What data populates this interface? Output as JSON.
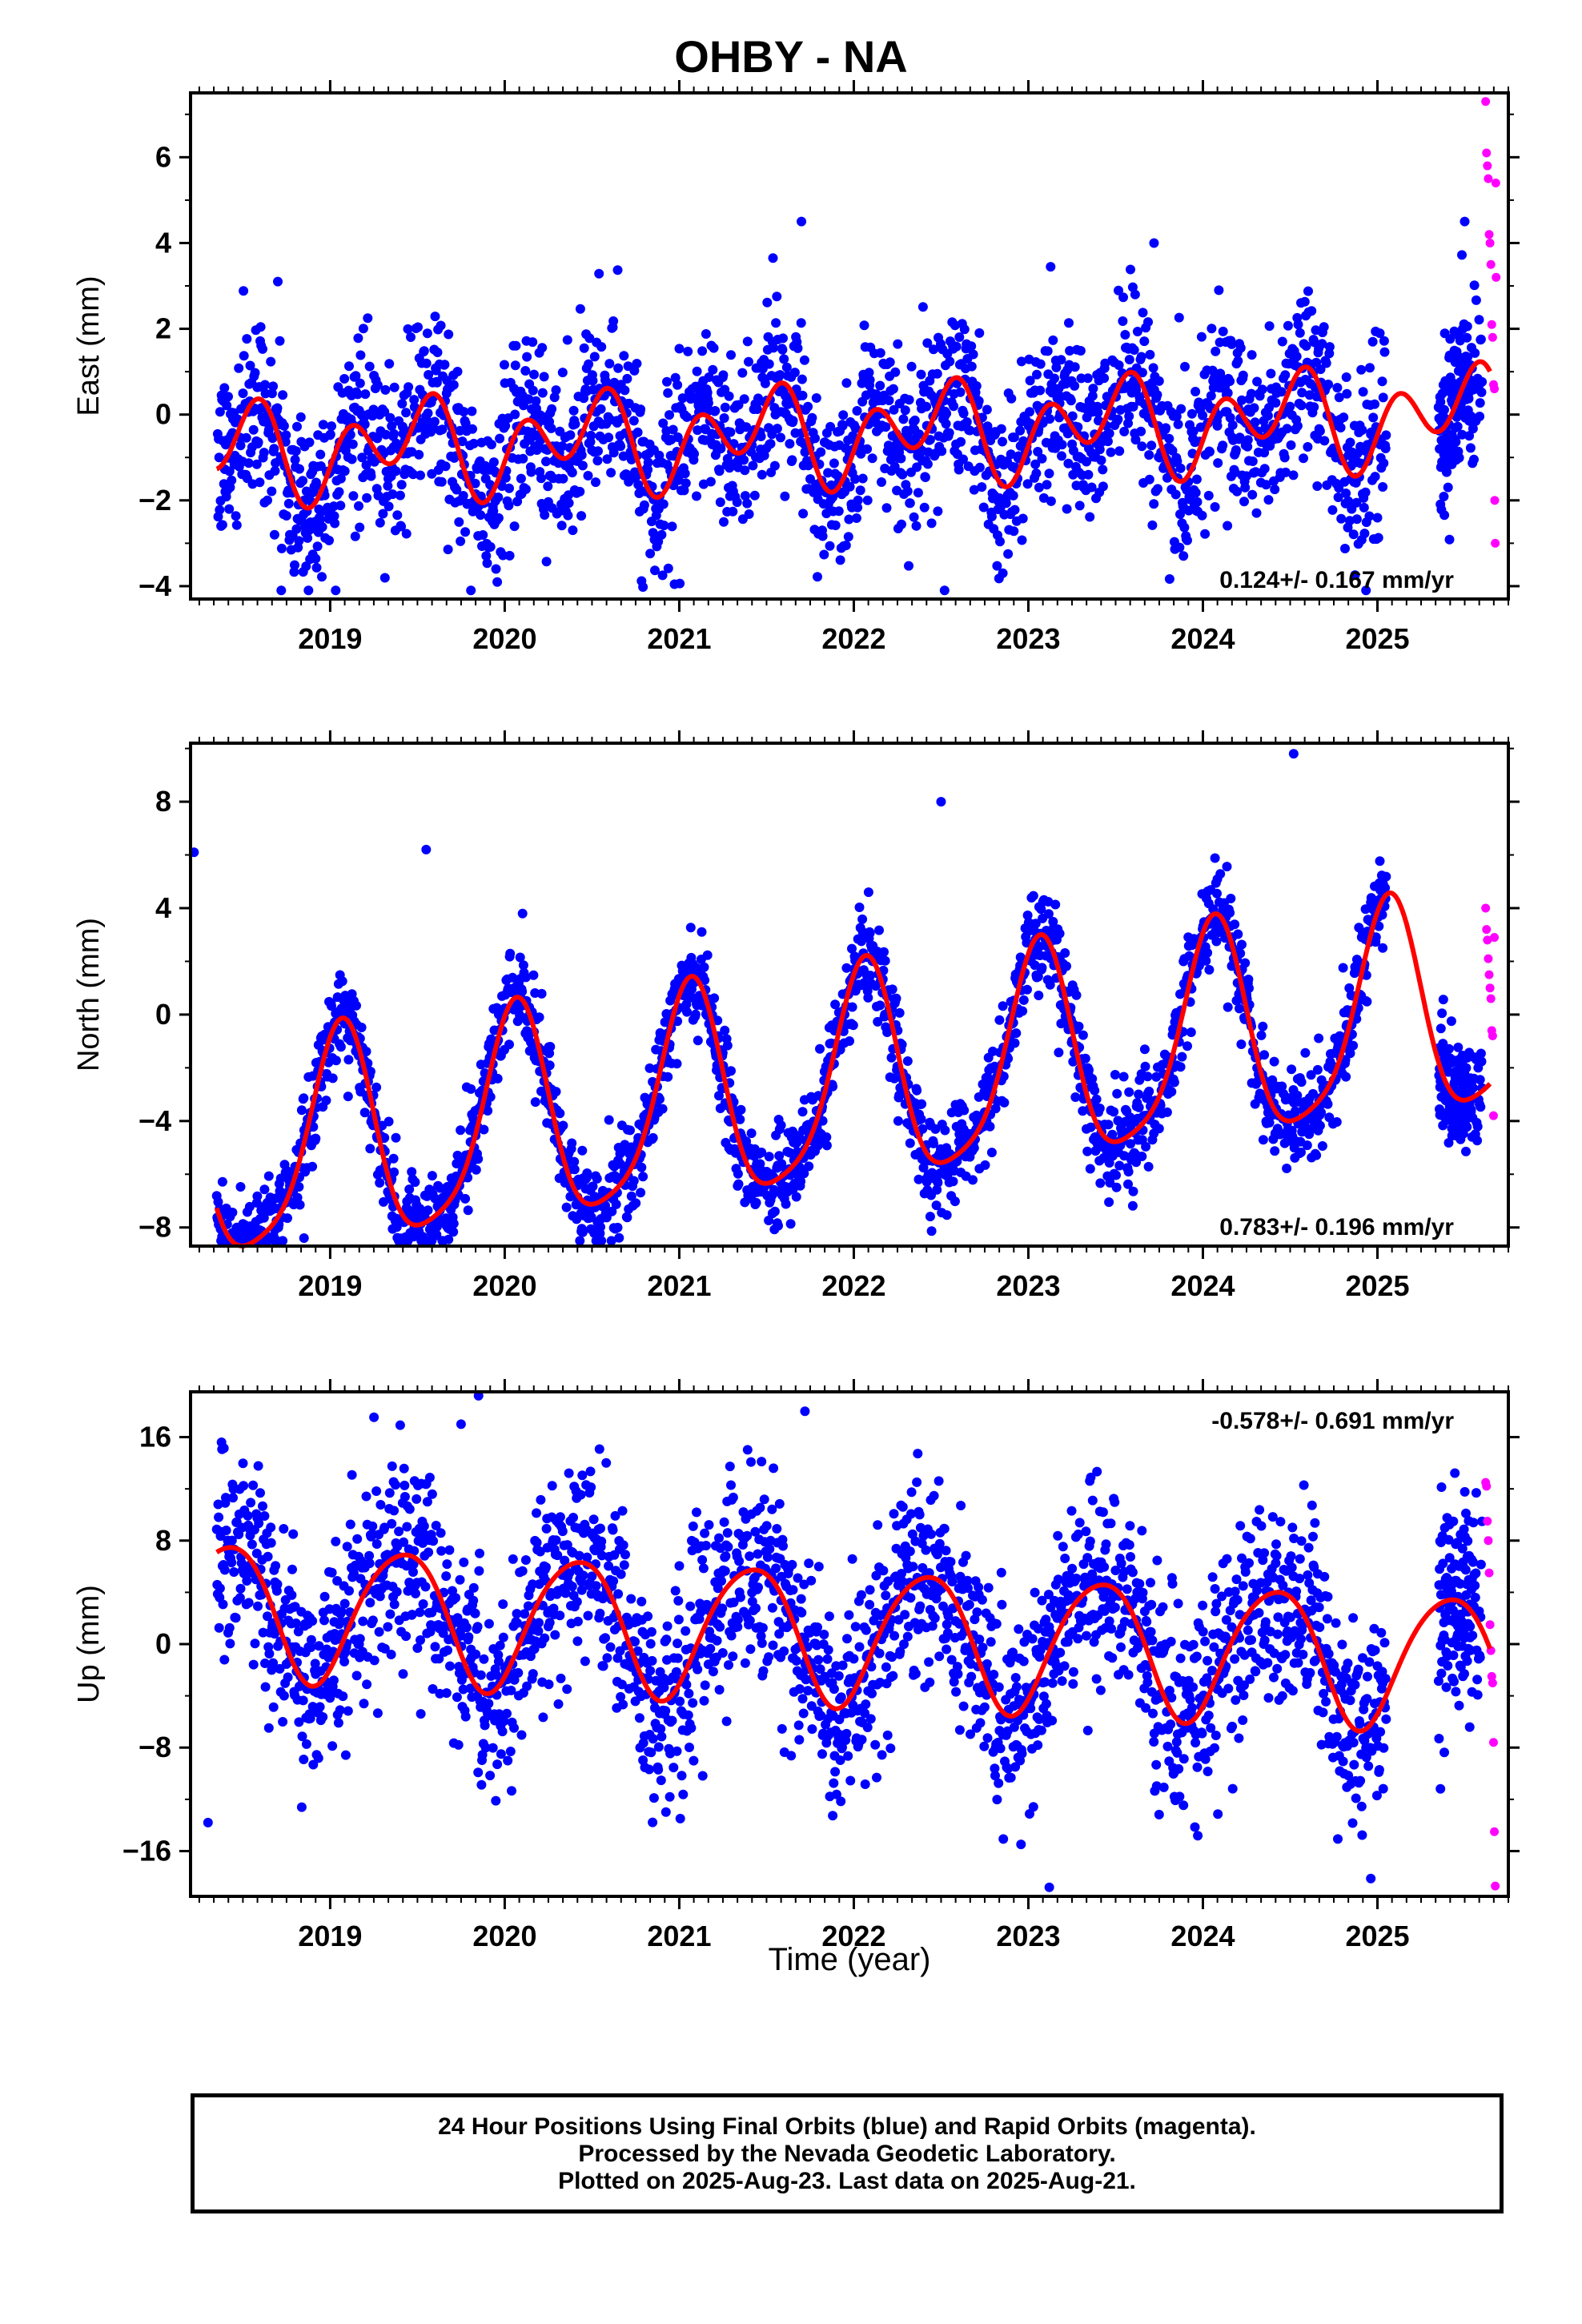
{
  "title": "OHBY - NA",
  "xlabel": "Time (year)",
  "footer": {
    "line1": "24 Hour Positions Using Final Orbits (blue) and Rapid Orbits (magenta).",
    "line2": "Processed by the Nevada Geodetic Laboratory.",
    "line3": "Plotted on 2025-Aug-23. Last data on 2025-Aug-21."
  },
  "colors": {
    "final": "#0000ff",
    "rapid": "#ff00ff",
    "model": "#ff0000",
    "axis": "#000000"
  },
  "chart_data": [
    {
      "type": "scatter",
      "panel": "east",
      "ylabel": "East (mm)",
      "xlim": [
        2018.2,
        2025.75
      ],
      "ylim": [
        -4.3,
        7.5
      ],
      "yticks": [
        -4,
        -2,
        0,
        2,
        4,
        6
      ],
      "xticks": [
        2019,
        2020,
        2021,
        2022,
        2023,
        2024,
        2025
      ],
      "rate_label": "0.124+/- 0.167 mm/yr",
      "rate_label_position": "bottom-right",
      "model": {
        "name": "fit",
        "params": {
          "trend": 0.124,
          "offset": -0.5,
          "a1": 0.6,
          "p1": -1.3,
          "a2": 0.85,
          "p2": 0.2
        }
      },
      "final_series": {
        "t_start": 2018.35,
        "t_end": 2025.55,
        "noise_sd": 1.0,
        "gap": [
          2025.05,
          2025.35
        ]
      },
      "rapid_series": {
        "x": [
          2025.62,
          2025.625,
          2025.63,
          2025.635,
          2025.64,
          2025.645,
          2025.65,
          2025.655,
          2025.66,
          2025.665,
          2025.67,
          2025.672,
          2025.675,
          2025.678,
          2025.68
        ],
        "y": [
          7.3,
          6.1,
          5.8,
          5.5,
          4.2,
          4.0,
          3.5,
          2.1,
          1.8,
          0.7,
          0.6,
          -2.0,
          -3.0,
          5.4,
          3.2
        ]
      },
      "final_points": [
        {
          "x": 2018.7,
          "y": 3.1
        },
        {
          "x": 2021.7,
          "y": 4.5
        },
        {
          "x": 2022.52,
          "y": -4.1
        },
        {
          "x": 2023.72,
          "y": 4.0
        },
        {
          "x": 2019.95,
          "y": -3.6
        },
        {
          "x": 2025.5,
          "y": 4.5
        }
      ]
    },
    {
      "type": "scatter",
      "panel": "north",
      "ylabel": "North (mm)",
      "xlim": [
        2018.2,
        2025.75
      ],
      "ylim": [
        -8.7,
        10.2
      ],
      "yticks": [
        -8,
        -4,
        0,
        4,
        8
      ],
      "xticks": [
        2019,
        2020,
        2021,
        2022,
        2023,
        2024,
        2025
      ],
      "rate_label": "0.783+/- 0.196 mm/yr",
      "rate_label_position": "bottom-right",
      "model": {
        "name": "fit",
        "params": {
          "trend": 0.783,
          "offset": -3.0,
          "a1": 4.0,
          "p1": 1.2,
          "a2": 0.8,
          "p2": 0.5
        }
      },
      "final_series": {
        "t_start": 2018.35,
        "t_end": 2025.55,
        "noise_sd": 0.9,
        "gap": [
          2025.05,
          2025.35
        ]
      },
      "rapid_series": {
        "x": [
          2025.62,
          2025.625,
          2025.63,
          2025.635,
          2025.64,
          2025.645,
          2025.65,
          2025.655,
          2025.66,
          2025.665,
          2025.67
        ],
        "y": [
          4.0,
          3.2,
          2.8,
          2.1,
          1.5,
          1.0,
          0.6,
          -0.6,
          -0.8,
          -3.8,
          2.9
        ]
      },
      "final_points": [
        {
          "x": 2018.22,
          "y": 6.1
        },
        {
          "x": 2018.85,
          "y": -8.4
        },
        {
          "x": 2024.52,
          "y": 9.8
        },
        {
          "x": 2019.55,
          "y": 6.2
        },
        {
          "x": 2022.5,
          "y": 8.0
        }
      ]
    },
    {
      "type": "scatter",
      "panel": "up",
      "ylabel": "Up (mm)",
      "xlim": [
        2018.2,
        2025.75
      ],
      "ylim": [
        -19.5,
        19.5
      ],
      "yticks": [
        -16,
        -8,
        0,
        8,
        16
      ],
      "xticks": [
        2019,
        2020,
        2021,
        2022,
        2023,
        2024,
        2025
      ],
      "rate_label": "-0.578+/- 0.691 mm/yr",
      "rate_label_position": "top-right",
      "model": {
        "name": "fit",
        "params": {
          "trend": -0.578,
          "offset": 1.0,
          "a1": 5.2,
          "p1": -1.0,
          "a2": 0.6,
          "p2": 0.0
        }
      },
      "final_series": {
        "t_start": 2018.35,
        "t_end": 2025.55,
        "noise_sd": 3.8,
        "gap": [
          2025.05,
          2025.35
        ]
      },
      "rapid_series": {
        "x": [
          2025.62,
          2025.625,
          2025.63,
          2025.635,
          2025.64,
          2025.645,
          2025.65,
          2025.655,
          2025.66,
          2025.665,
          2025.67,
          2025.675
        ],
        "y": [
          12.5,
          12.2,
          9.5,
          8.0,
          5.5,
          1.5,
          -0.5,
          -2.5,
          -3.0,
          -7.6,
          -14.5,
          -18.7
        ]
      },
      "final_points": [
        {
          "x": 2018.3,
          "y": -13.8
        },
        {
          "x": 2019.85,
          "y": 19.2
        },
        {
          "x": 2021.72,
          "y": 18.0
        },
        {
          "x": 2023.12,
          "y": -18.8
        },
        {
          "x": 2019.75,
          "y": 17.0
        }
      ]
    }
  ]
}
